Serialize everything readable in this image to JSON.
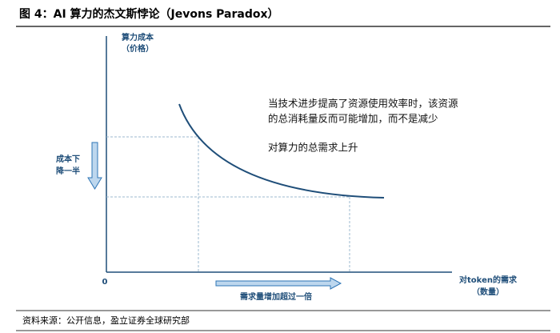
{
  "header": {
    "title": "图 4：AI 算力的杰文斯悖论（Jevons Paradox）"
  },
  "diagram": {
    "y_axis_label": [
      "算力成本",
      "（价格）"
    ],
    "x_axis_label": [
      "对token的需求",
      "（数量）"
    ],
    "origin": "0",
    "annotation": [
      "当技术进步提高了资源使用效率时，该资源",
      "的总消耗量反而可能增加，而不是减少"
    ],
    "summary": "对算力的总需求上升",
    "cost_arrow_label": [
      "成本下",
      "降一半"
    ],
    "demand_arrow_label": "需求量增加超过一倍"
  },
  "footer": {
    "source": "资料来源：公开信息，盈立证券全球研究部"
  }
}
